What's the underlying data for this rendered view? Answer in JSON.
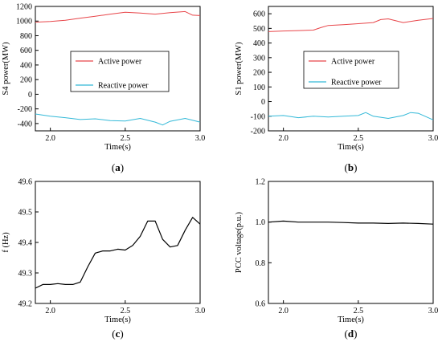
{
  "chart_data": [
    {
      "panel": "(a)",
      "type": "line",
      "xlabel": "Time(s)",
      "ylabel": "S4 power(MW)",
      "xlim": [
        1.9,
        3.0
      ],
      "ylim": [
        -500,
        1200
      ],
      "xticks": [
        2.0,
        2.5,
        3.0
      ],
      "yticks": [
        -400,
        -200,
        0,
        200,
        400,
        600,
        800,
        1000,
        1200
      ],
      "grid": false,
      "legend_position": "center",
      "series": [
        {
          "name": "Active power",
          "color": "#e8464a",
          "x": [
            1.9,
            2.0,
            2.1,
            2.2,
            2.3,
            2.4,
            2.5,
            2.6,
            2.7,
            2.8,
            2.9,
            2.95,
            3.0
          ],
          "y": [
            985,
            995,
            1010,
            1040,
            1065,
            1095,
            1120,
            1110,
            1095,
            1115,
            1130,
            1080,
            1075
          ]
        },
        {
          "name": "Reactive power",
          "color": "#33b9d8",
          "x": [
            1.9,
            2.0,
            2.1,
            2.2,
            2.3,
            2.4,
            2.5,
            2.6,
            2.7,
            2.75,
            2.8,
            2.9,
            3.0
          ],
          "y": [
            -270,
            -300,
            -320,
            -345,
            -335,
            -360,
            -365,
            -330,
            -380,
            -420,
            -370,
            -330,
            -380
          ]
        }
      ]
    },
    {
      "panel": "(b)",
      "type": "line",
      "xlabel": "Time(s)",
      "ylabel": "S1 power(MW)",
      "xlim": [
        1.9,
        3.0
      ],
      "ylim": [
        -200,
        650
      ],
      "xticks": [
        2.0,
        2.5,
        3.0
      ],
      "yticks": [
        -200,
        -100,
        0,
        100,
        200,
        300,
        400,
        500,
        600
      ],
      "grid": false,
      "legend_position": "center",
      "series": [
        {
          "name": "Active power",
          "color": "#e8464a",
          "x": [
            1.9,
            2.0,
            2.1,
            2.2,
            2.25,
            2.3,
            2.4,
            2.5,
            2.6,
            2.65,
            2.7,
            2.8,
            2.9,
            3.0
          ],
          "y": [
            478,
            482,
            485,
            488,
            505,
            520,
            525,
            532,
            540,
            560,
            565,
            540,
            555,
            568
          ]
        },
        {
          "name": "Reactive power",
          "color": "#33b9d8",
          "x": [
            1.9,
            2.0,
            2.1,
            2.2,
            2.3,
            2.4,
            2.5,
            2.55,
            2.6,
            2.7,
            2.8,
            2.85,
            2.9,
            3.0
          ],
          "y": [
            -100,
            -95,
            -110,
            -100,
            -105,
            -100,
            -95,
            -75,
            -100,
            -115,
            -95,
            -75,
            -80,
            -125
          ]
        }
      ]
    },
    {
      "panel": "(c)",
      "type": "line",
      "xlabel": "Time(s)",
      "ylabel": "f (Hz)",
      "xlim": [
        1.9,
        3.0
      ],
      "ylim": [
        49.2,
        49.6
      ],
      "xticks": [
        2.0,
        2.5,
        3.0
      ],
      "yticks": [
        49.2,
        49.3,
        49.4,
        49.5,
        49.6
      ],
      "grid": false,
      "series": [
        {
          "name": "",
          "color": "#000000",
          "x": [
            1.9,
            1.95,
            2.0,
            2.05,
            2.1,
            2.15,
            2.2,
            2.25,
            2.3,
            2.35,
            2.4,
            2.45,
            2.5,
            2.55,
            2.6,
            2.65,
            2.7,
            2.75,
            2.8,
            2.85,
            2.9,
            2.95,
            3.0
          ],
          "y": [
            49.25,
            49.262,
            49.262,
            49.265,
            49.262,
            49.262,
            49.27,
            49.32,
            49.365,
            49.372,
            49.372,
            49.378,
            49.375,
            49.39,
            49.42,
            49.47,
            49.47,
            49.41,
            49.385,
            49.39,
            49.44,
            49.482,
            49.46
          ]
        }
      ]
    },
    {
      "panel": "(d)",
      "type": "line",
      "xlabel": "Time(s)",
      "ylabel": "PCC voltage(p.u.)",
      "xlim": [
        1.9,
        3.0
      ],
      "ylim": [
        0.6,
        1.2
      ],
      "xticks": [
        2.0,
        2.5,
        3.0
      ],
      "yticks": [
        0.6,
        0.8,
        1.0,
        1.2
      ],
      "grid": false,
      "series": [
        {
          "name": "",
          "color": "#000000",
          "x": [
            1.9,
            2.0,
            2.1,
            2.2,
            2.3,
            2.4,
            2.5,
            2.6,
            2.7,
            2.8,
            2.9,
            3.0
          ],
          "y": [
            1.0,
            1.005,
            1.0,
            1.0,
            1.0,
            0.998,
            0.995,
            0.995,
            0.993,
            0.995,
            0.993,
            0.99
          ]
        }
      ]
    }
  ]
}
